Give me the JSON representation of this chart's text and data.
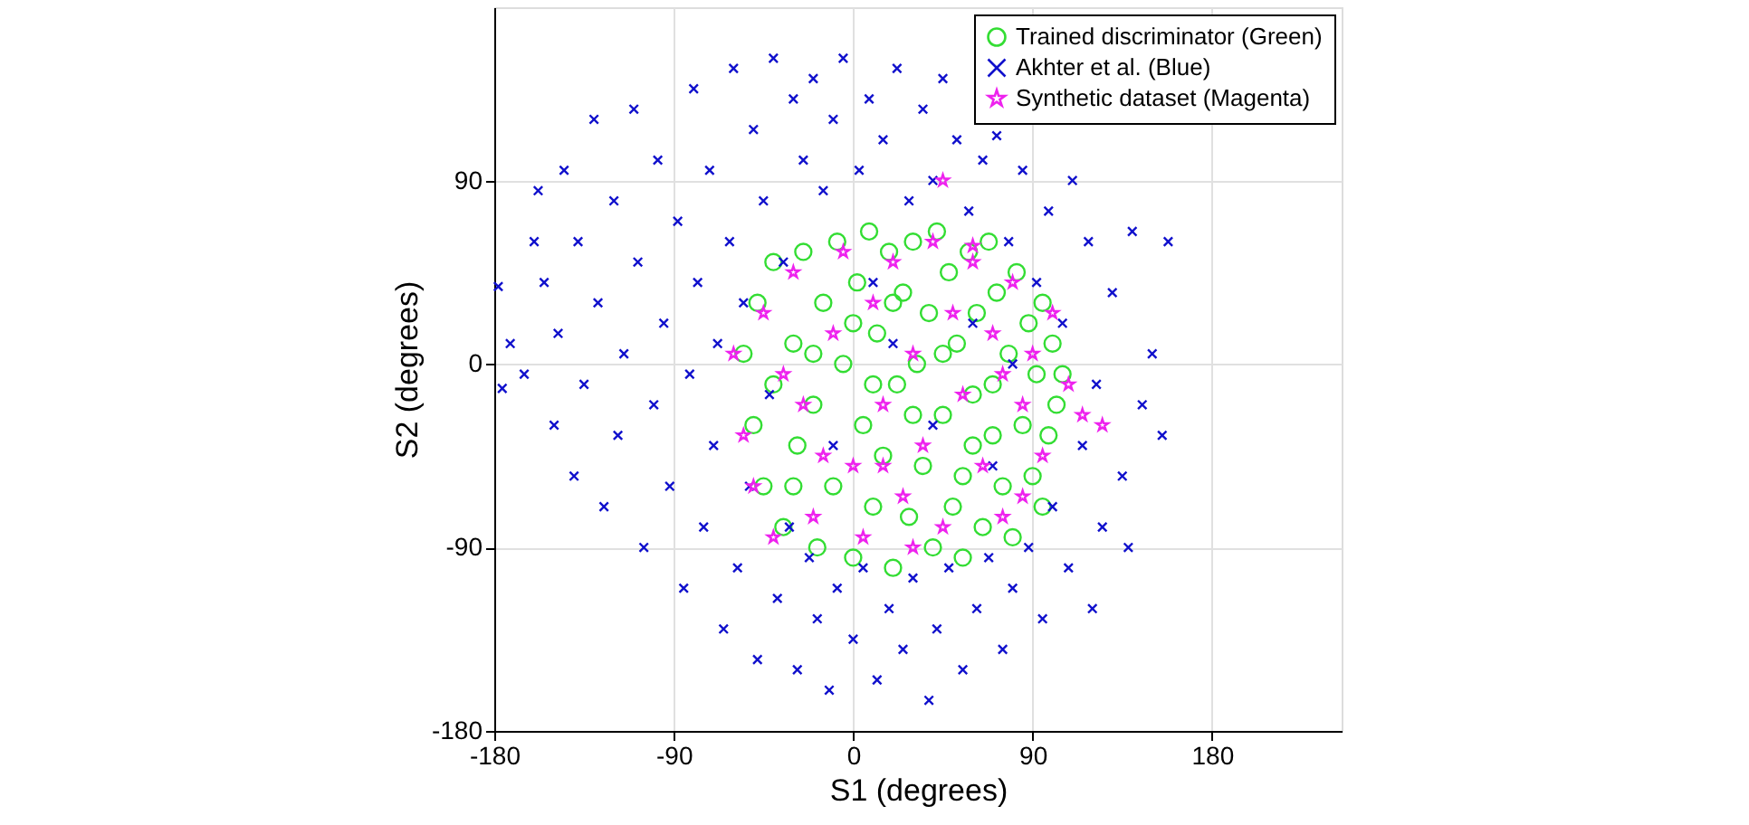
{
  "chart_data": {
    "type": "scatter",
    "xlabel": "S1 (degrees)",
    "ylabel": "S2 (degrees)",
    "xlim": [
      -180,
      245
    ],
    "ylim": [
      -180,
      175
    ],
    "xticks": [
      -180,
      -90,
      0,
      90,
      180
    ],
    "yticks": [
      -180,
      -90,
      0,
      90
    ],
    "grid": true,
    "legend": "top right",
    "series": [
      {
        "name": "Trained discriminator (Green)",
        "color": "#33dd33",
        "marker": "circle",
        "x": [
          -55,
          -50,
          -48,
          -45,
          -40,
          -35,
          -30,
          -28,
          -25,
          -20,
          -18,
          -15,
          -10,
          -8,
          -5,
          0,
          2,
          5,
          8,
          10,
          12,
          15,
          18,
          20,
          22,
          25,
          28,
          30,
          32,
          35,
          38,
          40,
          42,
          45,
          48,
          50,
          52,
          55,
          58,
          60,
          62,
          65,
          68,
          70,
          72,
          75,
          78,
          80,
          82,
          85,
          88,
          90,
          92,
          95,
          98,
          100,
          102,
          105,
          95,
          -40,
          -30,
          60,
          30,
          0,
          10,
          45,
          70,
          -20,
          20,
          55
        ],
        "values": [
          5,
          -30,
          30,
          -60,
          50,
          -80,
          10,
          -40,
          55,
          -20,
          -90,
          30,
          -60,
          60,
          0,
          -95,
          40,
          -30,
          65,
          -70,
          15,
          -45,
          55,
          -100,
          -10,
          35,
          -75,
          60,
          0,
          -50,
          25,
          -90,
          65,
          -25,
          45,
          -70,
          10,
          -95,
          55,
          -40,
          25,
          -80,
          60,
          -10,
          35,
          -60,
          5,
          -85,
          45,
          -30,
          20,
          -55,
          -5,
          30,
          -35,
          10,
          -20,
          -5,
          -70,
          -10,
          -60,
          -15,
          -25,
          20,
          -10,
          5,
          -35,
          5,
          30,
          -55
        ]
      },
      {
        "name": "Akhter et al. (Blue)",
        "color": "#1010cc",
        "marker": "cross",
        "x": [
          -178,
          -176,
          -172,
          -165,
          -160,
          -158,
          -155,
          -150,
          -148,
          -145,
          -140,
          -138,
          -135,
          -130,
          -128,
          -125,
          -120,
          -118,
          -115,
          -110,
          -108,
          -105,
          -100,
          -98,
          -95,
          -92,
          -88,
          -85,
          -82,
          -80,
          -78,
          -75,
          -72,
          -70,
          -68,
          -65,
          -62,
          -60,
          -58,
          -55,
          -52,
          -50,
          -48,
          -45,
          -42,
          -40,
          -38,
          -35,
          -32,
          -30,
          -28,
          -25,
          -22,
          -20,
          -18,
          -15,
          -12,
          -10,
          -8,
          -5,
          0,
          3,
          5,
          8,
          12,
          15,
          18,
          22,
          25,
          28,
          30,
          35,
          38,
          40,
          42,
          45,
          48,
          52,
          55,
          58,
          62,
          65,
          68,
          72,
          75,
          78,
          80,
          85,
          88,
          92,
          95,
          98,
          100,
          105,
          108,
          110,
          115,
          118,
          122,
          125,
          130,
          135,
          140,
          145,
          150,
          155,
          158,
          138,
          120,
          20,
          40,
          60,
          -10,
          10,
          70,
          80
        ],
        "values": [
          38,
          -12,
          10,
          -5,
          60,
          85,
          40,
          -30,
          15,
          95,
          -55,
          60,
          -10,
          120,
          30,
          -70,
          80,
          -35,
          5,
          125,
          50,
          -90,
          -20,
          100,
          20,
          -60,
          70,
          -110,
          -5,
          135,
          40,
          -80,
          95,
          -40,
          10,
          -130,
          60,
          145,
          -100,
          30,
          -60,
          115,
          -145,
          80,
          -15,
          150,
          -115,
          50,
          -80,
          130,
          -150,
          100,
          -95,
          140,
          -125,
          85,
          -160,
          120,
          -110,
          150,
          -135,
          95,
          -100,
          130,
          -155,
          110,
          -120,
          145,
          -140,
          80,
          -105,
          125,
          -165,
          90,
          -130,
          140,
          -100,
          110,
          -150,
          75,
          -120,
          100,
          -95,
          112,
          -140,
          60,
          -110,
          95,
          -90,
          40,
          -125,
          75,
          -70,
          20,
          -100,
          90,
          -40,
          60,
          -10,
          -80,
          35,
          -55,
          65,
          -20,
          5,
          -35,
          60,
          -90,
          -120,
          10,
          -30,
          20,
          -40,
          40,
          -50,
          0
        ]
      },
      {
        "name": "Synthetic dataset (Magenta)",
        "color": "#ee22ee",
        "marker": "star",
        "x": [
          -60,
          -55,
          -50,
          -45,
          -40,
          -30,
          -25,
          -20,
          -10,
          -5,
          0,
          5,
          10,
          15,
          20,
          25,
          30,
          35,
          40,
          45,
          50,
          55,
          60,
          65,
          70,
          75,
          80,
          85,
          90,
          95,
          100,
          108,
          115,
          125,
          45,
          60,
          -35,
          15,
          75,
          30,
          -15,
          85
        ],
        "values": [
          5,
          -35,
          -60,
          25,
          -85,
          45,
          -20,
          -75,
          15,
          55,
          -50,
          -85,
          30,
          -20,
          50,
          -65,
          5,
          -40,
          60,
          -80,
          25,
          -15,
          50,
          -50,
          15,
          -75,
          40,
          -20,
          5,
          -45,
          25,
          -10,
          -25,
          -30,
          90,
          58,
          -5,
          -50,
          -5,
          -90,
          -45,
          -65
        ]
      }
    ]
  }
}
